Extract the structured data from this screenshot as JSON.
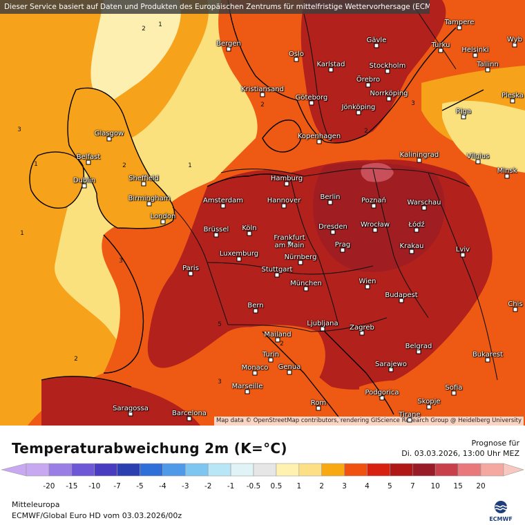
{
  "banner": "Dieser Service basiert auf Daten und Produkten des Europäischen Zentrums für mittelfristige Wettervorhersage (ECMWF)",
  "credit": "Map data © OpenStreetMap contributors, rendering GIScience Research Group @ Heidelberg University",
  "title": "Temperaturabweichung 2m (K=°C)",
  "forecast": {
    "label": "Prognose für",
    "datetime": "Di. 03.03.2026, 13:00 Uhr MEZ"
  },
  "region": "Mitteleuropa",
  "model": "ECMWF/Global Euro HD vom  03.03.2026/00z",
  "logo_text": "ECMWF",
  "legend": {
    "ticks": [
      "-20",
      "-15",
      "-10",
      "-7",
      "-5",
      "-4",
      "-3",
      "-2",
      "-1",
      "-0.5",
      "0.5",
      "1",
      "2",
      "3",
      "4",
      "5",
      "7",
      "10",
      "15",
      "20"
    ],
    "colors": [
      "#c8a8f0",
      "#9a7ee6",
      "#6e58d6",
      "#4a3cc0",
      "#2c3fb0",
      "#2f6fd8",
      "#4f9ae8",
      "#7ec6f2",
      "#b8e6f6",
      "#e0f4f8",
      "#e6e6e6",
      "#fff2b0",
      "#fde086",
      "#f8a810",
      "#f05010",
      "#d82010",
      "#b01818",
      "#981c28",
      "#c8404a",
      "#e8787a",
      "#f4a8a0"
    ],
    "left_color": "#c8a8f0",
    "right_color": "#f8c8c0"
  },
  "map_colors": {
    "sea": "#fbe07e",
    "orange": "#f7a21b",
    "red": "#ee5a14",
    "darkred": "#b3211c",
    "maroon": "#a01e22",
    "pink": "#c9505a",
    "pale": "#fcefb0"
  },
  "isolines": [
    "2",
    "1",
    "3",
    "2",
    "1",
    "3",
    "2",
    "1",
    "5",
    "2",
    "3",
    "2",
    "3",
    "1",
    "2"
  ],
  "cities": [
    {
      "name": "Tampere"
    },
    {
      "name": "Bergen"
    },
    {
      "name": "Gävle"
    },
    {
      "name": "Turku"
    },
    {
      "name": "Helsinki"
    },
    {
      "name": "Wyb"
    },
    {
      "name": "Oslo"
    },
    {
      "name": "Karlstad"
    },
    {
      "name": "Stockholm"
    },
    {
      "name": "Tallinn"
    },
    {
      "name": "Örebro"
    },
    {
      "name": "Kristiansand"
    },
    {
      "name": "Norrköping"
    },
    {
      "name": "Pleska"
    },
    {
      "name": "Göteborg"
    },
    {
      "name": "Jönköping"
    },
    {
      "name": "Riga"
    },
    {
      "name": "Glasgow"
    },
    {
      "name": "Kopenhagen"
    },
    {
      "name": "Kaliningrad"
    },
    {
      "name": "Vilnius"
    },
    {
      "name": "Belfast"
    },
    {
      "name": "Minsk"
    },
    {
      "name": "Dublin"
    },
    {
      "name": "Sheffield"
    },
    {
      "name": "Hamburg"
    },
    {
      "name": "Birmingham"
    },
    {
      "name": "Amsterdam"
    },
    {
      "name": "Hannover"
    },
    {
      "name": "Berlin"
    },
    {
      "name": "Poznań"
    },
    {
      "name": "Warschau"
    },
    {
      "name": "London"
    },
    {
      "name": "Łódź"
    },
    {
      "name": "Köln"
    },
    {
      "name": "Brüssel"
    },
    {
      "name": "Dresden"
    },
    {
      "name": "Wrocław"
    },
    {
      "name": "Frankfurt am Main"
    },
    {
      "name": "Prag"
    },
    {
      "name": "Krakau"
    },
    {
      "name": "Luxemburg"
    },
    {
      "name": "Lviv"
    },
    {
      "name": "Nürnberg"
    },
    {
      "name": "Paris"
    },
    {
      "name": "Stuttgart"
    },
    {
      "name": "München"
    },
    {
      "name": "Wien"
    },
    {
      "name": "Budapest"
    },
    {
      "name": "Chis"
    },
    {
      "name": "Bern"
    },
    {
      "name": "Ljubljana"
    },
    {
      "name": "Zagreb"
    },
    {
      "name": "Mailand"
    },
    {
      "name": "Turin"
    },
    {
      "name": "Belgrad"
    },
    {
      "name": "Bukarest"
    },
    {
      "name": "Monaco"
    },
    {
      "name": "Genua"
    },
    {
      "name": "Sarajewo"
    },
    {
      "name": "Marseille"
    },
    {
      "name": "Podgorica"
    },
    {
      "name": "Sofia"
    },
    {
      "name": "Saragossa"
    },
    {
      "name": "Rom"
    },
    {
      "name": "Skopje"
    },
    {
      "name": "Barcelona"
    },
    {
      "name": "Tirane"
    }
  ]
}
